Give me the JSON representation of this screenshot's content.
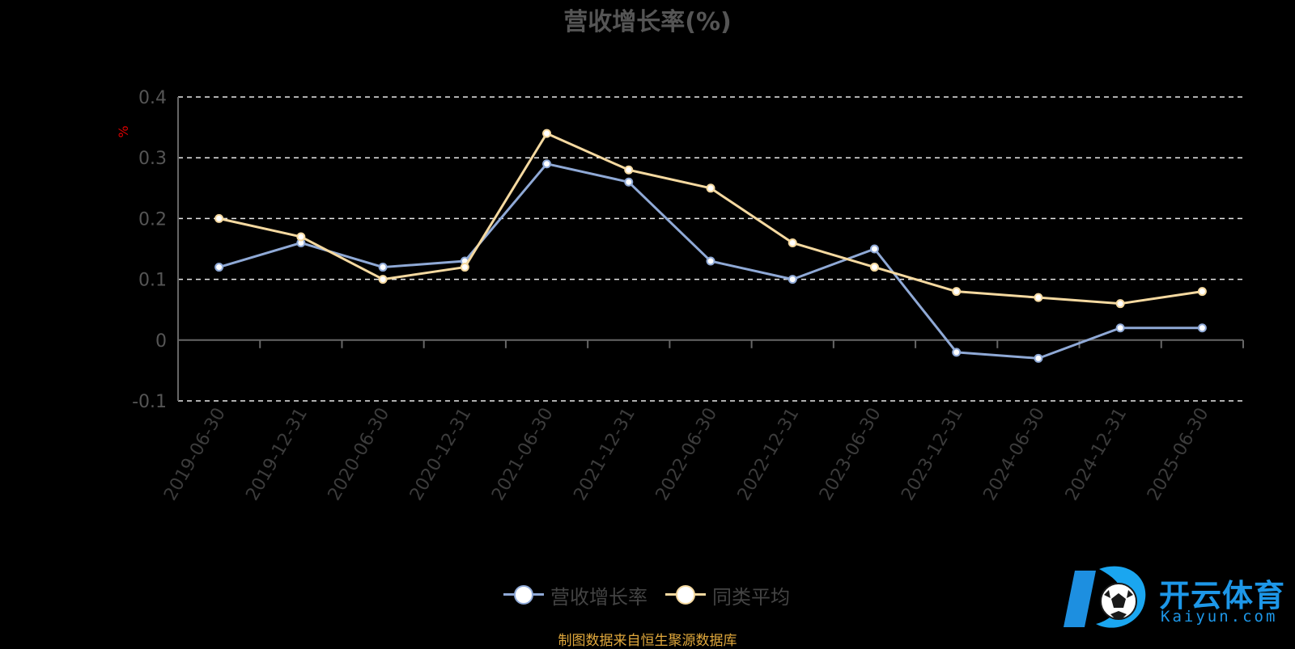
{
  "chart_data": {
    "type": "line",
    "title": "营收增长率(%)",
    "ylabel": "%",
    "xlabel": "",
    "ylim": [
      -0.1,
      0.4
    ],
    "yticks": [
      -0.1,
      0,
      0.1,
      0.2,
      0.3,
      0.4
    ],
    "ytick_labels": [
      "-0.1",
      "0",
      "0.1",
      "0.2",
      "0.3",
      "0.4"
    ],
    "grid": true,
    "legend_position": "bottom-center",
    "categories": [
      "2019-06-30",
      "2019-12-31",
      "2020-06-30",
      "2020-12-31",
      "2021-06-30",
      "2021-12-31",
      "2022-06-30",
      "2022-12-31",
      "2023-06-30",
      "2023-12-31",
      "2024-06-30",
      "2024-12-31",
      "2025-06-30"
    ],
    "series": [
      {
        "name": "营收增长率",
        "color": "#8fa9d6",
        "values": [
          0.12,
          0.16,
          0.12,
          0.13,
          0.29,
          0.26,
          0.13,
          0.1,
          0.15,
          -0.02,
          -0.03,
          0.02,
          0.02
        ]
      },
      {
        "name": "同类平均",
        "color": "#f5d9a0",
        "values": [
          0.2,
          0.17,
          0.1,
          0.12,
          0.34,
          0.28,
          0.25,
          0.16,
          0.12,
          0.08,
          0.07,
          0.06,
          0.08
        ]
      }
    ]
  },
  "footer": {
    "source": "制图数据来自恒生聚源数据库"
  },
  "watermark": {
    "name": "开云体育",
    "domain": "Kaiyun.com"
  }
}
